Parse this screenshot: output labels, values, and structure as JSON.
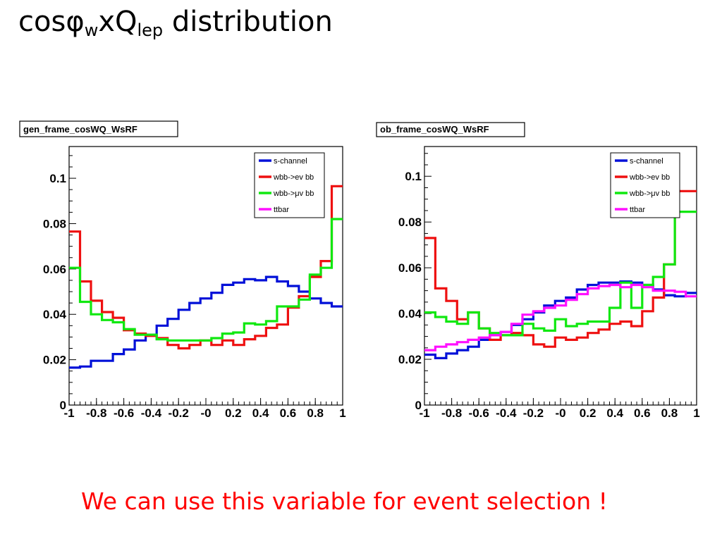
{
  "slide": {
    "title_main": "cos",
    "title_phi": "φ",
    "title_sub_w": "w",
    "title_x": "xQ",
    "title_sub_lep": "lep",
    "title_rest": " distribution",
    "footer": "We can use this variable for event selection !"
  },
  "colors": {
    "s-channel": "#0010d8",
    "wbb->ev bb": "#ee1010",
    "wbb->μv bb": "#10e810",
    "ttbar": "#ff10ff"
  },
  "chart_data": [
    {
      "type": "histogram",
      "title": "gen_frame_cosWQ_WsRF",
      "xlim": [
        -1,
        1
      ],
      "ylim": [
        0,
        0.114
      ],
      "x_ticks": [
        -1,
        -0.8,
        -0.6,
        -0.4,
        -0.2,
        0,
        0.2,
        0.4,
        0.6,
        0.8,
        1
      ],
      "x_tick_labels": [
        "-1",
        "-0.8",
        "-0.6",
        "-0.4",
        "-0.2",
        "-0",
        "0.2",
        "0.4",
        "0.6",
        "0.8",
        "1"
      ],
      "y_ticks": [
        0,
        0.02,
        0.04,
        0.06,
        0.08,
        0.1
      ],
      "y_tick_labels": [
        "0",
        "0.02",
        "0.04",
        "0.06",
        "0.08",
        "0.1"
      ],
      "legend_position": "top-right",
      "bins": 25,
      "series": [
        {
          "name": "s-channel",
          "values": [
            0.0165,
            0.017,
            0.0195,
            0.0195,
            0.0225,
            0.0245,
            0.0285,
            0.031,
            0.035,
            0.038,
            0.042,
            0.045,
            0.047,
            0.0495,
            0.053,
            0.054,
            0.0555,
            0.055,
            0.0565,
            0.0545,
            0.0525,
            0.05,
            0.047,
            0.045,
            0.0435
          ]
        },
        {
          "name": "wbb->ev bb",
          "values": [
            0.0765,
            0.0545,
            0.046,
            0.041,
            0.0385,
            0.033,
            0.0315,
            0.0305,
            0.0295,
            0.0265,
            0.025,
            0.0265,
            0.0285,
            0.0265,
            0.0285,
            0.0265,
            0.029,
            0.0305,
            0.034,
            0.0355,
            0.043,
            0.048,
            0.0565,
            0.0635,
            0.0965
          ]
        },
        {
          "name": "wbb->μv bb",
          "values": [
            0.0605,
            0.0455,
            0.04,
            0.0375,
            0.0365,
            0.0335,
            0.031,
            0.031,
            0.029,
            0.0285,
            0.0285,
            0.0285,
            0.0285,
            0.0295,
            0.0315,
            0.032,
            0.036,
            0.0355,
            0.037,
            0.0435,
            0.0435,
            0.0465,
            0.0575,
            0.0605,
            0.082
          ]
        }
      ]
    },
    {
      "type": "histogram",
      "title": "ob_frame_cosWQ_WsRF",
      "xlim": [
        -1,
        1
      ],
      "ylim": [
        0,
        0.113
      ],
      "x_ticks": [
        -1,
        -0.8,
        -0.6,
        -0.4,
        -0.2,
        0,
        0.2,
        0.4,
        0.6,
        0.8,
        1
      ],
      "x_tick_labels": [
        "-1",
        "-0.8",
        "-0.6",
        "-0.4",
        "-0.2",
        "-0",
        "0.2",
        "0.4",
        "0.6",
        "0.8",
        "1"
      ],
      "y_ticks": [
        0,
        0.02,
        0.04,
        0.06,
        0.08,
        0.1
      ],
      "y_tick_labels": [
        "0",
        "0.02",
        "0.04",
        "0.06",
        "0.08",
        "0.1"
      ],
      "legend_position": "top-right",
      "bins": 25,
      "series": [
        {
          "name": "s-channel",
          "values": [
            0.022,
            0.0205,
            0.0225,
            0.024,
            0.0255,
            0.0285,
            0.0305,
            0.032,
            0.035,
            0.0375,
            0.0405,
            0.0435,
            0.0455,
            0.047,
            0.0505,
            0.0525,
            0.0535,
            0.0535,
            0.054,
            0.0535,
            0.0525,
            0.0505,
            0.048,
            0.0475,
            0.049
          ]
        },
        {
          "name": "wbb->ev bb",
          "values": [
            0.073,
            0.051,
            0.0455,
            0.0375,
            0.0405,
            0.0335,
            0.0285,
            0.0305,
            0.0315,
            0.0305,
            0.0265,
            0.0255,
            0.0295,
            0.0285,
            0.0295,
            0.0315,
            0.033,
            0.0355,
            0.0365,
            0.0345,
            0.041,
            0.047,
            0.0615,
            0.0935,
            0.0935
          ]
        },
        {
          "name": "wbb->μv bb",
          "values": [
            0.0405,
            0.0385,
            0.0365,
            0.0355,
            0.0405,
            0.0335,
            0.0315,
            0.0305,
            0.0305,
            0.0355,
            0.0335,
            0.0325,
            0.0375,
            0.0345,
            0.0355,
            0.0365,
            0.0365,
            0.0425,
            0.0535,
            0.0425,
            0.0525,
            0.056,
            0.0615,
            0.0845,
            0.0845
          ]
        },
        {
          "name": "ttbar",
          "values": [
            0.024,
            0.0255,
            0.0265,
            0.0275,
            0.0285,
            0.0295,
            0.0305,
            0.032,
            0.0355,
            0.0395,
            0.041,
            0.0425,
            0.0435,
            0.046,
            0.0485,
            0.051,
            0.052,
            0.0525,
            0.0515,
            0.0525,
            0.0515,
            0.05,
            0.05,
            0.0495,
            0.0475
          ]
        }
      ]
    }
  ]
}
